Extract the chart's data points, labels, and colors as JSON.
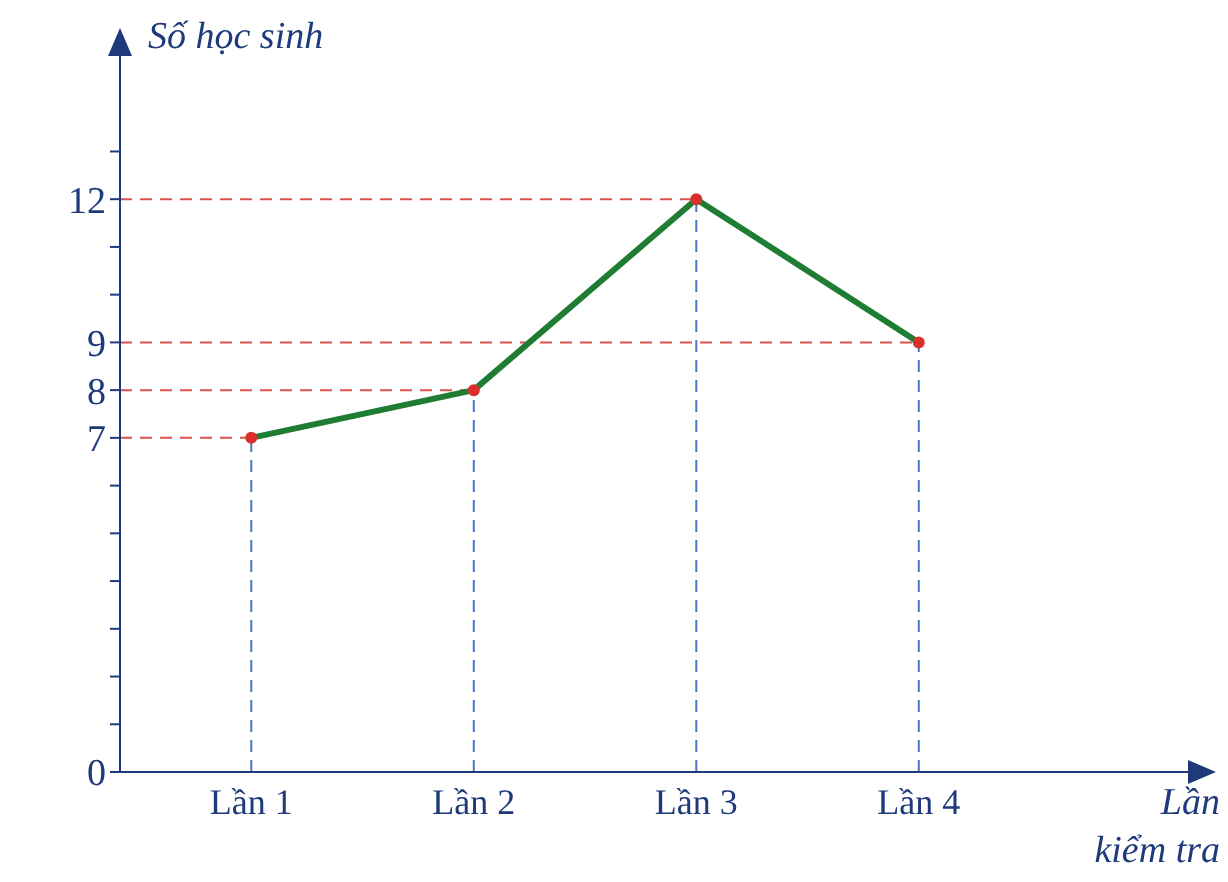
{
  "chart_data": {
    "type": "line",
    "xlabel": "Lần kiểm tra",
    "ylabel": "Số học sinh",
    "categories": [
      "Lần 1",
      "Lần 2",
      "Lần 3",
      "Lần 4"
    ],
    "series": [
      {
        "color": "#1e7d32",
        "values": [
          7,
          8,
          12,
          9
        ]
      }
    ],
    "ylim": [
      0,
      15
    ],
    "yticks": [
      0,
      {
        "value": 1,
        "label": null
      },
      {
        "value": 2,
        "label": null
      },
      {
        "value": 3,
        "label": null
      },
      {
        "value": 4,
        "label": null
      },
      {
        "value": 5,
        "label": null
      },
      {
        "value": 6,
        "label": null
      },
      7,
      8,
      9,
      {
        "value": 10,
        "label": null
      },
      {
        "value": 11,
        "label": null
      },
      12,
      {
        "value": 13,
        "label": null
      }
    ],
    "ref_lines": [
      {
        "axis": "y",
        "value": 7,
        "color": "#d9534f",
        "line_style": "dashed"
      },
      {
        "axis": "y",
        "value": 8,
        "color": "#d9534f",
        "line_style": "dashed"
      },
      {
        "axis": "y",
        "value": 9,
        "color": "#d9534f",
        "line_style": "dashed"
      },
      {
        "axis": "y",
        "value": 12,
        "color": "#d9534f",
        "line_style": "dashed"
      },
      {
        "axis": "x",
        "value": "Lần 1",
        "color": "#4a74c9",
        "line_style": "dashed"
      },
      {
        "axis": "x",
        "value": "Lần 2",
        "color": "#4a74c9",
        "line_style": "dashed"
      },
      {
        "axis": "x",
        "value": "Lần 3",
        "color": "#4a74c9",
        "line_style": "dashed"
      },
      {
        "axis": "x",
        "value": "Lần 4",
        "color": "#4a74c9",
        "line_style": "dashed"
      }
    ],
    "grid": false,
    "legend": false,
    "marker": "circle",
    "line_style": "solid"
  }
}
